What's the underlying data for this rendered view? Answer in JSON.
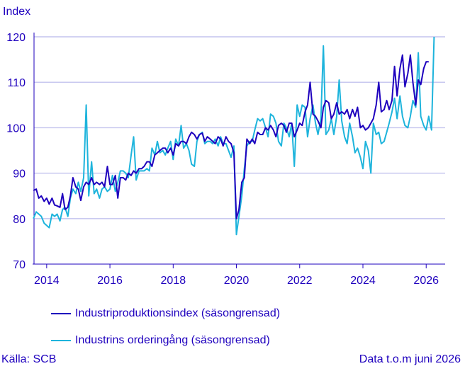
{
  "chart_data": {
    "type": "line",
    "ylabel": "Index",
    "ylim": [
      70,
      120
    ],
    "yticks": [
      70,
      80,
      90,
      100,
      110,
      120
    ],
    "xlim": [
      2013.6,
      2026.6
    ],
    "xticks": [
      "2014",
      "2016",
      "2018",
      "2020",
      "2022",
      "2024",
      "2026"
    ],
    "grid": true,
    "legend_position": "bottom",
    "series": [
      {
        "name": "Industriproduktionsindex (säsongrensad)",
        "color": "#1e00be",
        "points": [
          [
            2013.58,
            86.2
          ],
          [
            2013.67,
            86.5
          ],
          [
            2013.75,
            84.5
          ],
          [
            2013.83,
            85.0
          ],
          [
            2013.92,
            83.8
          ],
          [
            2014.0,
            84.5
          ],
          [
            2014.08,
            83.2
          ],
          [
            2014.17,
            84.5
          ],
          [
            2014.25,
            83.0
          ],
          [
            2014.33,
            82.8
          ],
          [
            2014.42,
            82.5
          ],
          [
            2014.5,
            85.5
          ],
          [
            2014.58,
            82.0
          ],
          [
            2014.67,
            82.5
          ],
          [
            2014.75,
            85.0
          ],
          [
            2014.83,
            89.0
          ],
          [
            2014.92,
            87.0
          ],
          [
            2015.0,
            86.5
          ],
          [
            2015.08,
            84.0
          ],
          [
            2015.17,
            87.0
          ],
          [
            2015.25,
            88.0
          ],
          [
            2015.33,
            87.5
          ],
          [
            2015.42,
            89.0
          ],
          [
            2015.5,
            87.5
          ],
          [
            2015.58,
            88.0
          ],
          [
            2015.67,
            87.5
          ],
          [
            2015.75,
            88.0
          ],
          [
            2015.83,
            87.0
          ],
          [
            2015.92,
            91.5
          ],
          [
            2016.0,
            87.5
          ],
          [
            2016.08,
            87.5
          ],
          [
            2016.17,
            89.5
          ],
          [
            2016.25,
            84.5
          ],
          [
            2016.33,
            89.0
          ],
          [
            2016.42,
            89.0
          ],
          [
            2016.5,
            88.5
          ],
          [
            2016.58,
            90.0
          ],
          [
            2016.67,
            89.5
          ],
          [
            2016.75,
            90.5
          ],
          [
            2016.83,
            90.0
          ],
          [
            2016.92,
            91.0
          ],
          [
            2017.0,
            91.0
          ],
          [
            2017.08,
            91.5
          ],
          [
            2017.17,
            92.5
          ],
          [
            2017.25,
            92.5
          ],
          [
            2017.33,
            91.5
          ],
          [
            2017.42,
            94.0
          ],
          [
            2017.5,
            94.5
          ],
          [
            2017.58,
            95.0
          ],
          [
            2017.67,
            95.5
          ],
          [
            2017.75,
            95.5
          ],
          [
            2017.83,
            94.5
          ],
          [
            2017.92,
            95.5
          ],
          [
            2018.0,
            94.0
          ],
          [
            2018.08,
            96.5
          ],
          [
            2018.17,
            96.0
          ],
          [
            2018.25,
            97.0
          ],
          [
            2018.33,
            97.0
          ],
          [
            2018.42,
            96.5
          ],
          [
            2018.5,
            98.0
          ],
          [
            2018.58,
            99.0
          ],
          [
            2018.67,
            98.5
          ],
          [
            2018.75,
            97.5
          ],
          [
            2018.83,
            98.5
          ],
          [
            2018.92,
            98.8
          ],
          [
            2019.0,
            97.0
          ],
          [
            2019.08,
            98.0
          ],
          [
            2019.17,
            97.5
          ],
          [
            2019.25,
            97.0
          ],
          [
            2019.33,
            96.5
          ],
          [
            2019.42,
            98.0
          ],
          [
            2019.5,
            97.5
          ],
          [
            2019.58,
            96.0
          ],
          [
            2019.67,
            98.0
          ],
          [
            2019.75,
            97.0
          ],
          [
            2019.83,
            96.5
          ],
          [
            2019.92,
            94.5
          ],
          [
            2020.0,
            80.0
          ],
          [
            2020.08,
            82.0
          ],
          [
            2020.17,
            88.0
          ],
          [
            2020.25,
            89.0
          ],
          [
            2020.33,
            97.5
          ],
          [
            2020.42,
            96.5
          ],
          [
            2020.5,
            97.5
          ],
          [
            2020.58,
            96.5
          ],
          [
            2020.67,
            99.0
          ],
          [
            2020.75,
            98.5
          ],
          [
            2020.83,
            98.5
          ],
          [
            2020.92,
            100.0
          ],
          [
            2021.0,
            99.5
          ],
          [
            2021.08,
            100.5
          ],
          [
            2021.17,
            99.5
          ],
          [
            2021.25,
            98.0
          ],
          [
            2021.33,
            100.5
          ],
          [
            2021.42,
            101.0
          ],
          [
            2021.5,
            100.5
          ],
          [
            2021.58,
            99.0
          ],
          [
            2021.67,
            101.0
          ],
          [
            2021.75,
            101.0
          ],
          [
            2021.83,
            98.0
          ],
          [
            2021.92,
            99.5
          ],
          [
            2022.0,
            101.0
          ],
          [
            2022.08,
            100.5
          ],
          [
            2022.17,
            103.5
          ],
          [
            2022.25,
            105.0
          ],
          [
            2022.33,
            110.0
          ],
          [
            2022.42,
            103.0
          ],
          [
            2022.5,
            102.5
          ],
          [
            2022.58,
            101.5
          ],
          [
            2022.67,
            100.0
          ],
          [
            2022.75,
            104.5
          ],
          [
            2022.83,
            106.0
          ],
          [
            2022.92,
            105.5
          ],
          [
            2023.0,
            102.0
          ],
          [
            2023.08,
            103.0
          ],
          [
            2023.17,
            105.5
          ],
          [
            2023.25,
            103.0
          ],
          [
            2023.33,
            103.5
          ],
          [
            2023.42,
            103.0
          ],
          [
            2023.5,
            104.0
          ],
          [
            2023.58,
            102.0
          ],
          [
            2023.67,
            104.0
          ],
          [
            2023.75,
            102.5
          ],
          [
            2023.83,
            104.5
          ],
          [
            2023.92,
            100.0
          ],
          [
            2024.0,
            100.5
          ],
          [
            2024.08,
            99.5
          ],
          [
            2024.17,
            100.0
          ],
          [
            2024.25,
            101.0
          ],
          [
            2024.33,
            102.0
          ],
          [
            2024.42,
            105.0
          ],
          [
            2024.5,
            110.0
          ],
          [
            2024.58,
            103.5
          ],
          [
            2024.67,
            104.0
          ],
          [
            2024.75,
            106.0
          ],
          [
            2024.83,
            104.0
          ],
          [
            2024.92,
            106.0
          ],
          [
            2025.0,
            113.5
          ],
          [
            2025.08,
            107.0
          ],
          [
            2025.17,
            113.0
          ],
          [
            2025.25,
            116.0
          ],
          [
            2025.33,
            109.0
          ],
          [
            2025.42,
            112.0
          ],
          [
            2025.5,
            116.0
          ],
          [
            2025.58,
            110.0
          ],
          [
            2025.67,
            105.0
          ],
          [
            2025.75,
            110.5
          ],
          [
            2025.83,
            109.5
          ],
          [
            2025.92,
            113.0
          ],
          [
            2026.0,
            114.5
          ],
          [
            2026.08,
            114.5
          ]
        ]
      },
      {
        "name": "Industrins orderingång (säsongrensad)",
        "color": "#1eb4dc",
        "points": [
          [
            2013.58,
            80.0
          ],
          [
            2013.67,
            81.5
          ],
          [
            2013.75,
            81.0
          ],
          [
            2013.83,
            80.5
          ],
          [
            2013.92,
            79.0
          ],
          [
            2014.0,
            78.5
          ],
          [
            2014.08,
            78.0
          ],
          [
            2014.17,
            81.0
          ],
          [
            2014.25,
            80.5
          ],
          [
            2014.33,
            81.0
          ],
          [
            2014.42,
            79.5
          ],
          [
            2014.5,
            82.0
          ],
          [
            2014.58,
            82.5
          ],
          [
            2014.67,
            80.5
          ],
          [
            2014.75,
            84.5
          ],
          [
            2014.83,
            86.5
          ],
          [
            2014.92,
            85.5
          ],
          [
            2015.0,
            88.0
          ],
          [
            2015.08,
            86.0
          ],
          [
            2015.17,
            89.0
          ],
          [
            2015.25,
            105.0
          ],
          [
            2015.33,
            85.0
          ],
          [
            2015.42,
            92.5
          ],
          [
            2015.5,
            85.5
          ],
          [
            2015.58,
            86.5
          ],
          [
            2015.67,
            84.5
          ],
          [
            2015.75,
            86.5
          ],
          [
            2015.83,
            87.0
          ],
          [
            2015.92,
            86.0
          ],
          [
            2016.0,
            86.5
          ],
          [
            2016.08,
            89.5
          ],
          [
            2016.17,
            86.0
          ],
          [
            2016.25,
            88.0
          ],
          [
            2016.33,
            90.5
          ],
          [
            2016.42,
            90.5
          ],
          [
            2016.5,
            90.0
          ],
          [
            2016.58,
            89.0
          ],
          [
            2016.67,
            94.0
          ],
          [
            2016.75,
            98.0
          ],
          [
            2016.83,
            88.5
          ],
          [
            2016.92,
            90.5
          ],
          [
            2017.0,
            90.5
          ],
          [
            2017.08,
            90.5
          ],
          [
            2017.17,
            91.0
          ],
          [
            2017.25,
            90.5
          ],
          [
            2017.33,
            95.5
          ],
          [
            2017.42,
            94.0
          ],
          [
            2017.5,
            97.0
          ],
          [
            2017.58,
            94.5
          ],
          [
            2017.67,
            95.0
          ],
          [
            2017.75,
            94.0
          ],
          [
            2017.83,
            95.5
          ],
          [
            2017.92,
            97.0
          ],
          [
            2018.0,
            93.0
          ],
          [
            2018.08,
            97.5
          ],
          [
            2018.17,
            96.0
          ],
          [
            2018.25,
            100.5
          ],
          [
            2018.33,
            95.5
          ],
          [
            2018.42,
            96.5
          ],
          [
            2018.5,
            95.0
          ],
          [
            2018.58,
            92.0
          ],
          [
            2018.67,
            91.5
          ],
          [
            2018.75,
            97.0
          ],
          [
            2018.83,
            98.5
          ],
          [
            2018.92,
            99.0
          ],
          [
            2019.0,
            96.5
          ],
          [
            2019.08,
            97.0
          ],
          [
            2019.17,
            97.0
          ],
          [
            2019.25,
            96.5
          ],
          [
            2019.33,
            97.5
          ],
          [
            2019.42,
            96.0
          ],
          [
            2019.5,
            98.0
          ],
          [
            2019.58,
            96.5
          ],
          [
            2019.67,
            96.5
          ],
          [
            2019.75,
            95.0
          ],
          [
            2019.83,
            93.5
          ],
          [
            2019.92,
            96.0
          ],
          [
            2020.0,
            76.5
          ],
          [
            2020.08,
            80.5
          ],
          [
            2020.17,
            85.0
          ],
          [
            2020.25,
            91.0
          ],
          [
            2020.33,
            96.0
          ],
          [
            2020.42,
            97.0
          ],
          [
            2020.5,
            97.0
          ],
          [
            2020.58,
            99.5
          ],
          [
            2020.67,
            102.0
          ],
          [
            2020.75,
            101.5
          ],
          [
            2020.83,
            102.0
          ],
          [
            2020.92,
            100.0
          ],
          [
            2021.0,
            98.0
          ],
          [
            2021.08,
            103.0
          ],
          [
            2021.17,
            102.5
          ],
          [
            2021.25,
            101.0
          ],
          [
            2021.33,
            97.0
          ],
          [
            2021.42,
            96.0
          ],
          [
            2021.5,
            101.0
          ],
          [
            2021.58,
            100.0
          ],
          [
            2021.67,
            98.0
          ],
          [
            2021.75,
            101.0
          ],
          [
            2021.83,
            91.5
          ],
          [
            2021.92,
            105.0
          ],
          [
            2022.0,
            102.5
          ],
          [
            2022.08,
            105.0
          ],
          [
            2022.17,
            104.5
          ],
          [
            2022.25,
            98.0
          ],
          [
            2022.33,
            102.0
          ],
          [
            2022.42,
            105.0
          ],
          [
            2022.5,
            101.0
          ],
          [
            2022.58,
            98.5
          ],
          [
            2022.67,
            102.0
          ],
          [
            2022.75,
            118.0
          ],
          [
            2022.83,
            98.5
          ],
          [
            2022.92,
            99.5
          ],
          [
            2023.0,
            102.0
          ],
          [
            2023.08,
            98.5
          ],
          [
            2023.17,
            102.5
          ],
          [
            2023.25,
            110.5
          ],
          [
            2023.33,
            101.5
          ],
          [
            2023.42,
            98.0
          ],
          [
            2023.5,
            96.5
          ],
          [
            2023.58,
            101.0
          ],
          [
            2023.67,
            98.0
          ],
          [
            2023.75,
            94.5
          ],
          [
            2023.83,
            95.5
          ],
          [
            2023.92,
            93.5
          ],
          [
            2024.0,
            91.0
          ],
          [
            2024.08,
            97.0
          ],
          [
            2024.17,
            95.0
          ],
          [
            2024.25,
            90.0
          ],
          [
            2024.33,
            101.0
          ],
          [
            2024.42,
            98.5
          ],
          [
            2024.5,
            99.0
          ],
          [
            2024.58,
            96.5
          ],
          [
            2024.67,
            97.0
          ],
          [
            2024.75,
            99.0
          ],
          [
            2024.83,
            101.0
          ],
          [
            2024.92,
            103.5
          ],
          [
            2025.0,
            106.5
          ],
          [
            2025.08,
            102.0
          ],
          [
            2025.17,
            107.0
          ],
          [
            2025.25,
            102.5
          ],
          [
            2025.33,
            100.5
          ],
          [
            2025.42,
            100.0
          ],
          [
            2025.5,
            102.5
          ],
          [
            2025.58,
            106.0
          ],
          [
            2025.67,
            104.5
          ],
          [
            2025.75,
            116.5
          ],
          [
            2025.83,
            102.5
          ],
          [
            2025.92,
            100.5
          ],
          [
            2026.0,
            99.5
          ],
          [
            2026.08,
            102.5
          ],
          [
            2026.17,
            99.5
          ],
          [
            2026.25,
            120.0
          ]
        ]
      }
    ]
  },
  "footer": {
    "source": "Källa: SCB",
    "data_note": "Data t.o.m juni 2026"
  }
}
